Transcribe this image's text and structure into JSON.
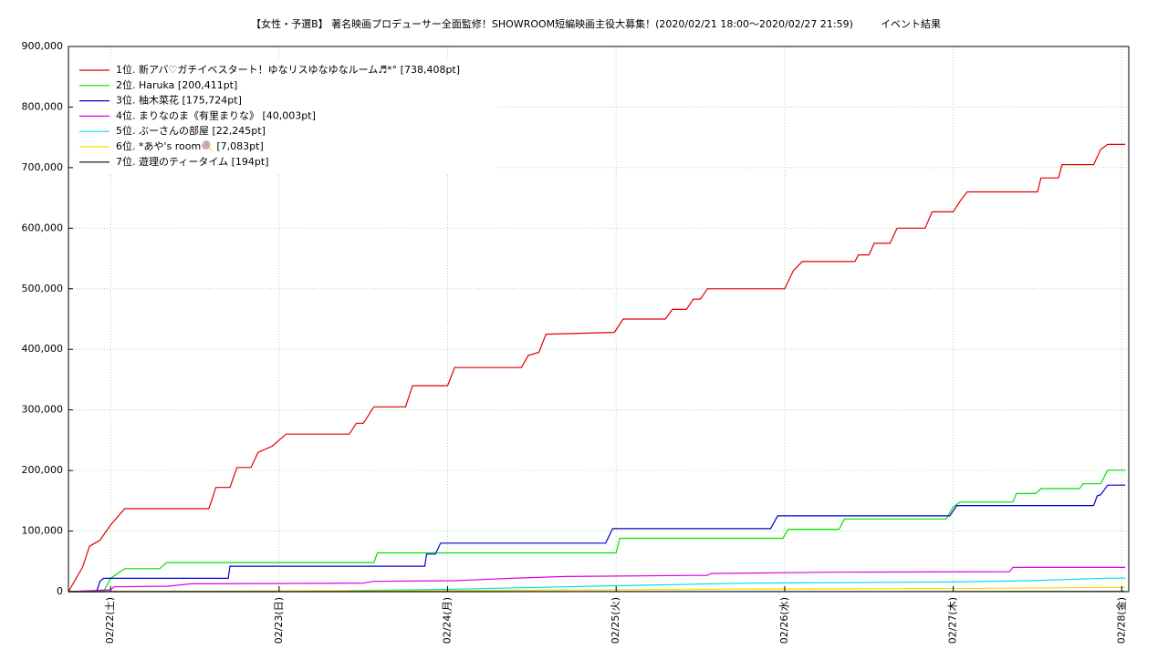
{
  "chart_data": {
    "type": "line",
    "title": "【女性・予選B】 著名映画プロデューサー全面監修！SHOWROOM短編映画主役大募集！(2020/02/21 18:00〜2020/02/27 21:59)",
    "subtitle": "イベント結果",
    "xlim": [
      "2020-02-21T18:00",
      "2020-02-28T01:00"
    ],
    "xticks": [
      {
        "value": "2020-02-22T00:00",
        "label": "02/22(土)"
      },
      {
        "value": "2020-02-23T00:00",
        "label": "02/23(日)"
      },
      {
        "value": "2020-02-24T00:00",
        "label": "02/24(月)"
      },
      {
        "value": "2020-02-25T00:00",
        "label": "02/25(火)"
      },
      {
        "value": "2020-02-26T00:00",
        "label": "02/26(水)"
      },
      {
        "value": "2020-02-27T00:00",
        "label": "02/27(木)"
      },
      {
        "value": "2020-02-28T00:00",
        "label": "02/28(金)"
      }
    ],
    "ylim": [
      0,
      900000
    ],
    "yticks": [
      0,
      {
        "value": 100000,
        "label": "100,000"
      },
      {
        "value": 200000,
        "label": "200,000"
      },
      {
        "value": 300000,
        "label": "300,000"
      },
      {
        "value": 400000,
        "label": "400,000"
      },
      {
        "value": 500000,
        "label": "500,000"
      },
      {
        "value": 600000,
        "label": "600,000"
      },
      {
        "value": 700000,
        "label": "700,000"
      },
      {
        "value": 800000,
        "label": "800,000"
      },
      {
        "value": 900000,
        "label": "900,000"
      }
    ],
    "grid": true,
    "legend": "upper-left",
    "series": [
      {
        "name": "1位. 新アバ♡ガチイベスタート！ゆなリスゆなゆなルーム♬*° [738,408pt]",
        "color": "#e00000",
        "x": [
          "2020-02-21T18:00",
          "2020-02-21T20:00",
          "2020-02-21T21:00",
          "2020-02-21T22:30",
          "2020-02-22T00:00",
          "2020-02-22T02:00",
          "2020-02-22T14:00",
          "2020-02-22T15:00",
          "2020-02-22T17:00",
          "2020-02-22T18:00",
          "2020-02-22T20:00",
          "2020-02-22T21:00",
          "2020-02-22T23:00",
          "2020-02-23T01:00",
          "2020-02-23T10:00",
          "2020-02-23T11:00",
          "2020-02-23T12:00",
          "2020-02-23T13:30",
          "2020-02-23T18:00",
          "2020-02-23T19:00",
          "2020-02-24T00:00",
          "2020-02-24T01:00",
          "2020-02-24T10:30",
          "2020-02-24T11:30",
          "2020-02-24T13:00",
          "2020-02-24T14:00",
          "2020-02-24T23:45",
          "2020-02-25T01:00",
          "2020-02-25T07:00",
          "2020-02-25T08:00",
          "2020-02-25T10:00",
          "2020-02-25T11:00",
          "2020-02-25T12:00",
          "2020-02-25T13:00",
          "2020-02-26T00:00",
          "2020-02-26T01:15",
          "2020-02-26T02:30",
          "2020-02-26T10:00",
          "2020-02-26T10:30",
          "2020-02-26T12:00",
          "2020-02-26T12:45",
          "2020-02-26T15:00",
          "2020-02-26T16:00",
          "2020-02-26T20:00",
          "2020-02-26T21:00",
          "2020-02-27T00:00",
          "2020-02-27T01:00",
          "2020-02-27T02:00",
          "2020-02-27T12:00",
          "2020-02-27T12:30",
          "2020-02-27T15:00",
          "2020-02-27T15:30",
          "2020-02-27T20:00",
          "2020-02-27T21:00",
          "2020-02-27T22:00",
          "2020-02-28T00:30"
        ],
        "values": [
          0,
          40000,
          75000,
          85000,
          110000,
          137000,
          137000,
          172000,
          172000,
          205000,
          205000,
          230000,
          240000,
          260000,
          260000,
          278000,
          278000,
          305000,
          305000,
          340000,
          340000,
          370000,
          370000,
          390000,
          395000,
          425000,
          428000,
          450000,
          450000,
          466000,
          466000,
          483000,
          483000,
          500000,
          500000,
          530000,
          545000,
          545000,
          556000,
          556000,
          575000,
          575000,
          600000,
          600000,
          627000,
          627000,
          645000,
          660000,
          660000,
          683000,
          683000,
          705000,
          705000,
          730000,
          738408,
          738408
        ]
      },
      {
        "name": "2位. Haruka [200,411pt]",
        "color": "#00e000",
        "x": [
          "2020-02-21T18:00",
          "2020-02-21T23:00",
          "2020-02-22T00:00",
          "2020-02-22T02:00",
          "2020-02-22T07:00",
          "2020-02-22T08:00",
          "2020-02-23T13:30",
          "2020-02-23T14:00",
          "2020-02-25T00:00",
          "2020-02-25T00:30",
          "2020-02-25T23:45",
          "2020-02-26T00:30",
          "2020-02-26T07:45",
          "2020-02-26T08:30",
          "2020-02-26T23:00",
          "2020-02-27T00:00",
          "2020-02-27T01:00",
          "2020-02-27T08:30",
          "2020-02-27T09:00",
          "2020-02-27T11:45",
          "2020-02-27T12:30",
          "2020-02-27T18:00",
          "2020-02-27T18:30",
          "2020-02-27T21:00",
          "2020-02-27T22:00",
          "2020-02-28T00:30"
        ],
        "values": [
          0,
          0,
          22000,
          38000,
          38000,
          48000,
          48000,
          64000,
          64000,
          88000,
          88000,
          103000,
          103000,
          120000,
          120000,
          140000,
          148000,
          148000,
          162000,
          162000,
          170000,
          170000,
          178000,
          178000,
          200411,
          200411
        ]
      },
      {
        "name": "3位. 柚木菜花 [175,724pt]",
        "color": "#0000d0",
        "x": [
          "2020-02-21T18:00",
          "2020-02-21T22:00",
          "2020-02-21T22:30",
          "2020-02-21T23:00",
          "2020-02-22T16:45",
          "2020-02-22T17:00",
          "2020-02-23T20:45",
          "2020-02-23T21:00",
          "2020-02-23T22:15",
          "2020-02-23T23:00",
          "2020-02-24T22:30",
          "2020-02-24T23:30",
          "2020-02-25T22:00",
          "2020-02-25T23:00",
          "2020-02-26T23:30",
          "2020-02-27T00:30",
          "2020-02-27T20:00",
          "2020-02-27T20:30",
          "2020-02-27T21:00",
          "2020-02-27T22:00",
          "2020-02-28T00:30"
        ],
        "values": [
          0,
          0,
          17000,
          22000,
          22000,
          42000,
          42000,
          62000,
          62000,
          80000,
          80000,
          104000,
          104000,
          125000,
          125000,
          142000,
          142000,
          158000,
          160000,
          175724,
          175724
        ]
      },
      {
        "name": "4位. まりなのま《有里まりな》 [40,003pt]",
        "color": "#e000e0",
        "x": [
          "2020-02-21T18:00",
          "2020-02-22T00:00",
          "2020-02-22T00:30",
          "2020-02-22T08:15",
          "2020-02-22T11:30",
          "2020-02-23T12:00",
          "2020-02-23T13:30",
          "2020-02-24T01:00",
          "2020-02-24T09:00",
          "2020-02-24T16:45",
          "2020-02-25T13:00",
          "2020-02-25T13:30",
          "2020-02-26T07:00",
          "2020-02-27T08:00",
          "2020-02-27T08:30",
          "2020-02-28T00:30"
        ],
        "values": [
          0,
          3000,
          8000,
          9000,
          13000,
          14000,
          17000,
          18000,
          22000,
          25000,
          27000,
          30000,
          32000,
          33000,
          40003,
          40003
        ]
      },
      {
        "name": "5位. ぶーさんの部屋 [22,245pt]",
        "color": "#00e0e0",
        "x": [
          "2020-02-21T18:00",
          "2020-02-22T23:00",
          "2020-02-24T01:00",
          "2020-02-24T20:45",
          "2020-02-25T18:45",
          "2020-02-26T23:30",
          "2020-02-27T11:00",
          "2020-02-27T22:00",
          "2020-02-28T00:30"
        ],
        "values": [
          0,
          0,
          4000,
          9000,
          14000,
          16000,
          18000,
          22245,
          22245
        ]
      },
      {
        "name": "6位. *あや's room🍭 [7,083pt]",
        "color": "#f0e000",
        "x": [
          "2020-02-21T18:00",
          "2020-02-24T01:00",
          "2020-02-25T16:00",
          "2020-02-27T07:00",
          "2020-02-27T22:00",
          "2020-02-28T00:30"
        ],
        "values": [
          0,
          2000,
          4000,
          5500,
          7083,
          7083
        ]
      },
      {
        "name": "7位. 遊理のティータイム [194pt]",
        "color": "#000000",
        "x": [
          "2020-02-21T18:00",
          "2020-02-28T00:30"
        ],
        "values": [
          0,
          194
        ]
      }
    ]
  }
}
